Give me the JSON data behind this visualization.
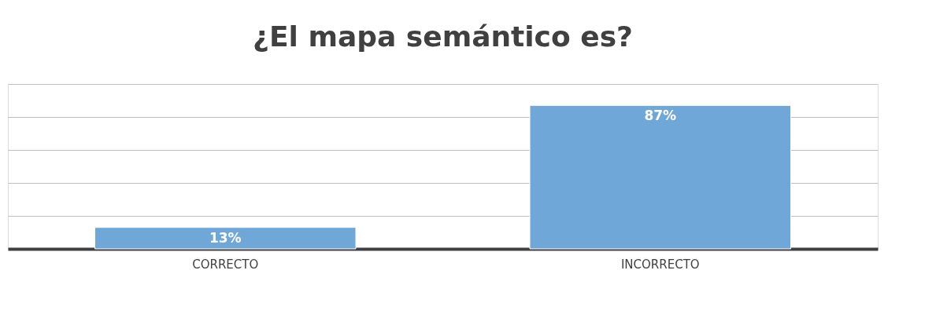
{
  "chart_data": {
    "type": "bar",
    "title": "¿El mapa semántico es?",
    "categories": [
      "CORRECTO",
      "INCORRECTO"
    ],
    "values": [
      13,
      87
    ],
    "color": "#70a7d9",
    "value_labels": [
      "13%",
      "87%"
    ],
    "ylim": [
      0,
      100
    ],
    "yticks": [
      {
        "value": 0,
        "label": null
      },
      {
        "value": 20,
        "label": null
      },
      {
        "value": 40,
        "label": null
      },
      {
        "value": 60,
        "label": null
      },
      {
        "value": 80,
        "label": null
      },
      {
        "value": 100,
        "label": null
      }
    ],
    "grid": "y",
    "tick_labels": "x"
  }
}
